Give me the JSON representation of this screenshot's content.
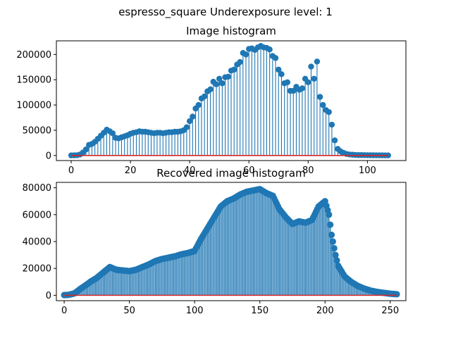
{
  "suptitle": "espresso_square Underexposure level: 1",
  "chart_data": [
    {
      "type": "stem",
      "title": "Image histogram",
      "xlabel": "",
      "ylabel": "",
      "xlim": [
        -5,
        113
      ],
      "ylim": [
        -10000,
        227000
      ],
      "xticks": [
        0,
        20,
        40,
        60,
        80,
        100
      ],
      "yticks": [
        0,
        50000,
        100000,
        150000,
        200000
      ],
      "x": [
        0,
        1,
        2,
        3,
        4,
        5,
        6,
        7,
        8,
        9,
        10,
        11,
        12,
        13,
        14,
        15,
        16,
        17,
        18,
        19,
        20,
        21,
        22,
        23,
        24,
        25,
        26,
        27,
        28,
        29,
        30,
        31,
        32,
        33,
        34,
        35,
        36,
        37,
        38,
        39,
        40,
        41,
        42,
        43,
        44,
        45,
        46,
        47,
        48,
        49,
        50,
        51,
        52,
        53,
        54,
        55,
        56,
        57,
        58,
        59,
        60,
        61,
        62,
        63,
        64,
        65,
        66,
        67,
        68,
        69,
        70,
        71,
        72,
        73,
        74,
        75,
        76,
        77,
        78,
        79,
        80,
        81,
        82,
        83,
        84,
        85,
        86,
        87,
        88,
        89,
        90,
        91,
        92,
        93,
        94,
        95,
        96,
        97,
        98,
        99,
        100,
        101,
        102,
        103,
        104,
        105,
        106,
        107
      ],
      "values": [
        200,
        300,
        600,
        2000,
        6000,
        12000,
        21000,
        23000,
        27000,
        33000,
        39000,
        45000,
        51000,
        48000,
        44000,
        35000,
        34000,
        36000,
        38000,
        40000,
        43000,
        45000,
        46000,
        48000,
        47000,
        47000,
        46000,
        45000,
        44000,
        45000,
        45000,
        44000,
        45000,
        46000,
        46000,
        47000,
        47000,
        48000,
        50000,
        56000,
        68000,
        77000,
        93000,
        100000,
        113000,
        117000,
        127000,
        131000,
        146000,
        141000,
        152000,
        143000,
        155000,
        156000,
        168000,
        170000,
        180000,
        185000,
        203000,
        200000,
        211000,
        212000,
        209000,
        214000,
        217000,
        214000,
        213000,
        210000,
        197000,
        193000,
        170000,
        161000,
        143000,
        145000,
        128000,
        128000,
        136000,
        130000,
        133000,
        152000,
        145000,
        176000,
        152000,
        186000,
        116000,
        100000,
        90000,
        86000,
        61000,
        30000,
        13000,
        8000,
        5000,
        3000,
        2000,
        1500,
        1000,
        800,
        800,
        700,
        600,
        500,
        450,
        400,
        350,
        300,
        250,
        200
      ],
      "baseline": 0,
      "colors": {
        "stem": "#1f77b4",
        "marker": "#1f77b4",
        "baseline": "#d62728"
      },
      "grid": false
    },
    {
      "type": "stem",
      "title": "Recovered image histogram",
      "xlabel": "",
      "ylabel": "",
      "xlim": [
        -6,
        262
      ],
      "ylim": [
        -4000,
        84000
      ],
      "xticks": [
        0,
        50,
        100,
        150,
        200,
        250
      ],
      "yticks": [
        0,
        20000,
        40000,
        60000,
        80000
      ],
      "profile_x": [
        0,
        3,
        5,
        8,
        10,
        12,
        15,
        18,
        20,
        25,
        30,
        35,
        40,
        45,
        50,
        55,
        60,
        65,
        70,
        75,
        80,
        85,
        90,
        95,
        100,
        105,
        110,
        115,
        120,
        125,
        130,
        135,
        140,
        145,
        150,
        155,
        160,
        165,
        170,
        175,
        180,
        185,
        190,
        195,
        200,
        203,
        205,
        208,
        210,
        215,
        220,
        225,
        230,
        235,
        240,
        245,
        250,
        255
      ],
      "profile_y": [
        200,
        300,
        700,
        1500,
        3000,
        4500,
        6500,
        8500,
        10000,
        13000,
        17000,
        21000,
        19000,
        18500,
        18000,
        19000,
        21000,
        23000,
        25500,
        27000,
        28000,
        29000,
        30500,
        31500,
        33000,
        42000,
        50000,
        58000,
        66000,
        70000,
        72000,
        75000,
        77000,
        78000,
        79000,
        76000,
        74000,
        64000,
        58000,
        53000,
        55000,
        54000,
        56000,
        66000,
        70000,
        60000,
        45000,
        30000,
        22000,
        14000,
        10000,
        7000,
        5000,
        3500,
        2500,
        1800,
        1200,
        800
      ],
      "baseline": 0,
      "colors": {
        "stem": "#1f77b4",
        "marker": "#1f77b4",
        "baseline": "#d62728"
      },
      "grid": false
    }
  ]
}
